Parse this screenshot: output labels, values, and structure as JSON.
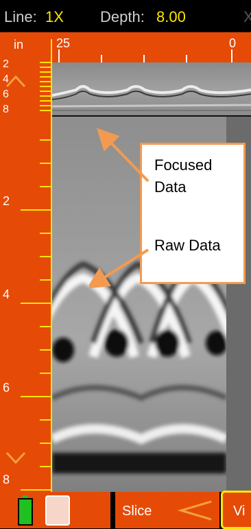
{
  "header": {
    "line_label": "Line:",
    "line_value": "1X",
    "depth_label": "Depth:",
    "depth_value": "8.00",
    "cut_char": "X"
  },
  "ruler": {
    "unit": "in",
    "top_labels": [
      "2",
      "4",
      "6",
      "8"
    ],
    "depth_labels": [
      "2",
      "4",
      "6",
      "8"
    ]
  },
  "hruler": {
    "left_label": "25",
    "right_label": "0"
  },
  "annotation": {
    "focused": "Focused\nData",
    "raw": "Raw Data"
  },
  "bottom": {
    "slice_label": "Slice",
    "view_label": "Vi"
  },
  "colors": {
    "orange": "#e64a07",
    "yellow": "#ffe600",
    "arrow": "#f39a51",
    "battery": "#20c020"
  }
}
